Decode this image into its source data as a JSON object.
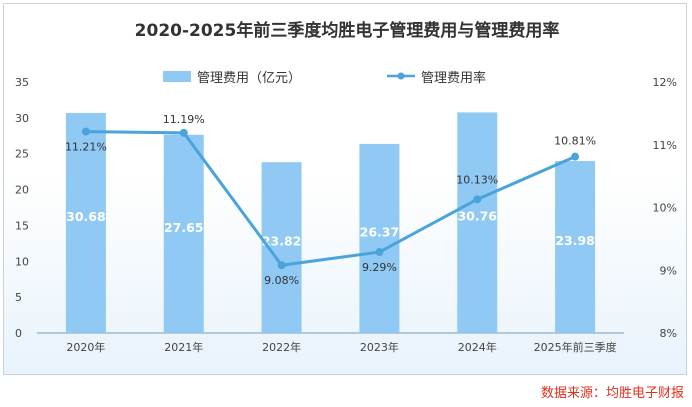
{
  "chart_data": {
    "type": "bar+line",
    "title": "2020-2025年前三季度均胜电子管理费用与管理费用率",
    "categories": [
      "2020年",
      "2021年",
      "2022年",
      "2023年",
      "2024年",
      "2025年前三季度"
    ],
    "series": [
      {
        "name": "管理费用（亿元）",
        "type": "bar",
        "axis": "left",
        "values": [
          30.68,
          27.65,
          23.82,
          26.37,
          30.76,
          23.98
        ],
        "labels": [
          "30.68",
          "27.65",
          "23.82",
          "26.37",
          "30.76",
          "23.98"
        ]
      },
      {
        "name": "管理费用率",
        "type": "line",
        "axis": "right",
        "values": [
          11.21,
          11.19,
          9.08,
          9.29,
          10.13,
          10.81
        ],
        "labels": [
          "11.21%",
          "11.19%",
          "9.08%",
          "9.29%",
          "10.13%",
          "10.81%"
        ]
      }
    ],
    "y_left": {
      "min": 0,
      "max": 35,
      "ticks": [
        "0",
        "5",
        "10",
        "15",
        "20",
        "25",
        "30",
        "35"
      ]
    },
    "y_right": {
      "min": 8,
      "max": 12,
      "ticks": [
        "8%",
        "9%",
        "10%",
        "11%",
        "12%"
      ]
    },
    "legend": "top-center",
    "colors": {
      "bar": "#90caf4",
      "line": "#4aa3da",
      "bar_label": "#ffffff",
      "source": "#e0301e"
    }
  },
  "source_text": "数据来源：均胜电子财报"
}
